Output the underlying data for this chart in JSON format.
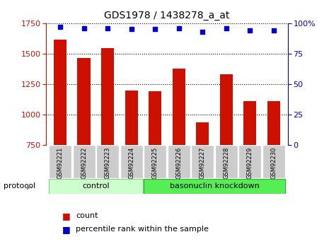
{
  "title": "GDS1978 / 1438278_a_at",
  "samples": [
    "GSM92221",
    "GSM92222",
    "GSM92223",
    "GSM92224",
    "GSM92225",
    "GSM92226",
    "GSM92227",
    "GSM92228",
    "GSM92229",
    "GSM92230"
  ],
  "counts": [
    1615,
    1465,
    1545,
    1200,
    1195,
    1375,
    935,
    1330,
    1110,
    1110
  ],
  "percentiles": [
    97,
    96,
    96,
    95,
    95,
    96,
    93,
    96,
    94,
    94
  ],
  "ylim_left": [
    750,
    1750
  ],
  "ylim_right": [
    0,
    100
  ],
  "yticks_left": [
    750,
    1000,
    1250,
    1500,
    1750
  ],
  "yticks_right": [
    0,
    25,
    50,
    75,
    100
  ],
  "ytick_labels_right": [
    "0",
    "25",
    "50",
    "75",
    "100%"
  ],
  "bar_color": "#cc1100",
  "dot_color": "#0000cc",
  "background_color": "#ffffff",
  "left_axis_color": "#cc1100",
  "right_axis_color": "#0000cc",
  "control_color": "#ccffcc",
  "knockdown_color": "#55ee55",
  "tick_bg_color": "#cccccc",
  "legend_count_label": "count",
  "legend_percentile_label": "percentile rank within the sample",
  "protocol_label": "protocol",
  "control_label": "control",
  "knockdown_label": "basonuclin knockdown",
  "n_control": 4,
  "n_knockdown": 6
}
